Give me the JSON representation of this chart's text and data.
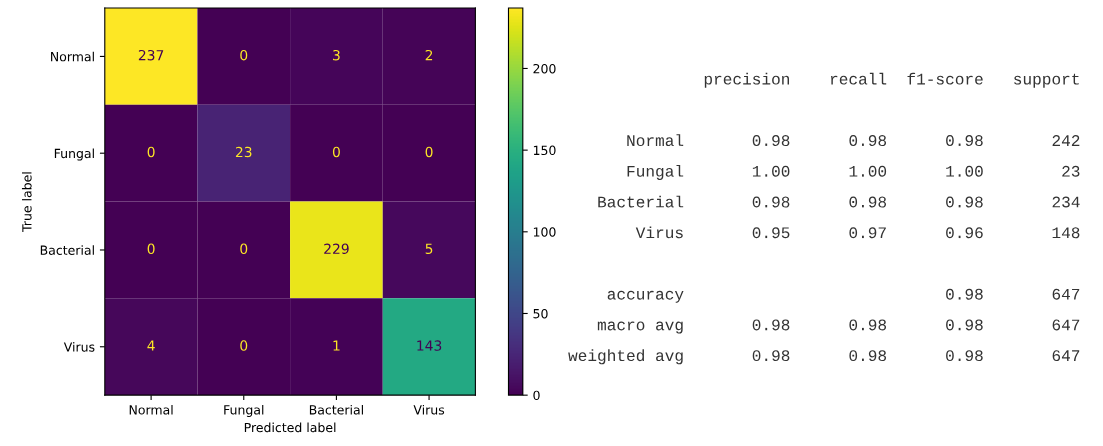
{
  "chart_data": [
    {
      "type": "heatmap",
      "xlabel": "Predicted label",
      "ylabel": "True label",
      "categories": [
        "Normal",
        "Fungal",
        "Bacterial",
        "Virus"
      ],
      "y_categories": [
        "Normal",
        "Fungal",
        "Bacterial",
        "Virus"
      ],
      "cells": [
        [
          237,
          0,
          3,
          2
        ],
        [
          0,
          23,
          0,
          0
        ],
        [
          0,
          0,
          229,
          5
        ],
        [
          4,
          0,
          1,
          143
        ]
      ],
      "clim": [
        0,
        237
      ],
      "cticks": [
        0,
        50,
        100,
        150,
        200
      ],
      "data_labels": true
    },
    {
      "type": "other",
      "annotations": [
        "              precision    recall  f1-score   support",
        "      Normal       0.98      0.98      0.98       242",
        "      Fungal       1.00      1.00      1.00        23",
        "   Bacterial       0.98      0.98      0.98       234",
        "       Virus       0.95      0.97      0.96       148",
        "    accuracy                           0.98       647",
        "   macro avg       0.98      0.98      0.98       647",
        "weighted avg       0.98      0.98      0.98       647"
      ]
    }
  ]
}
